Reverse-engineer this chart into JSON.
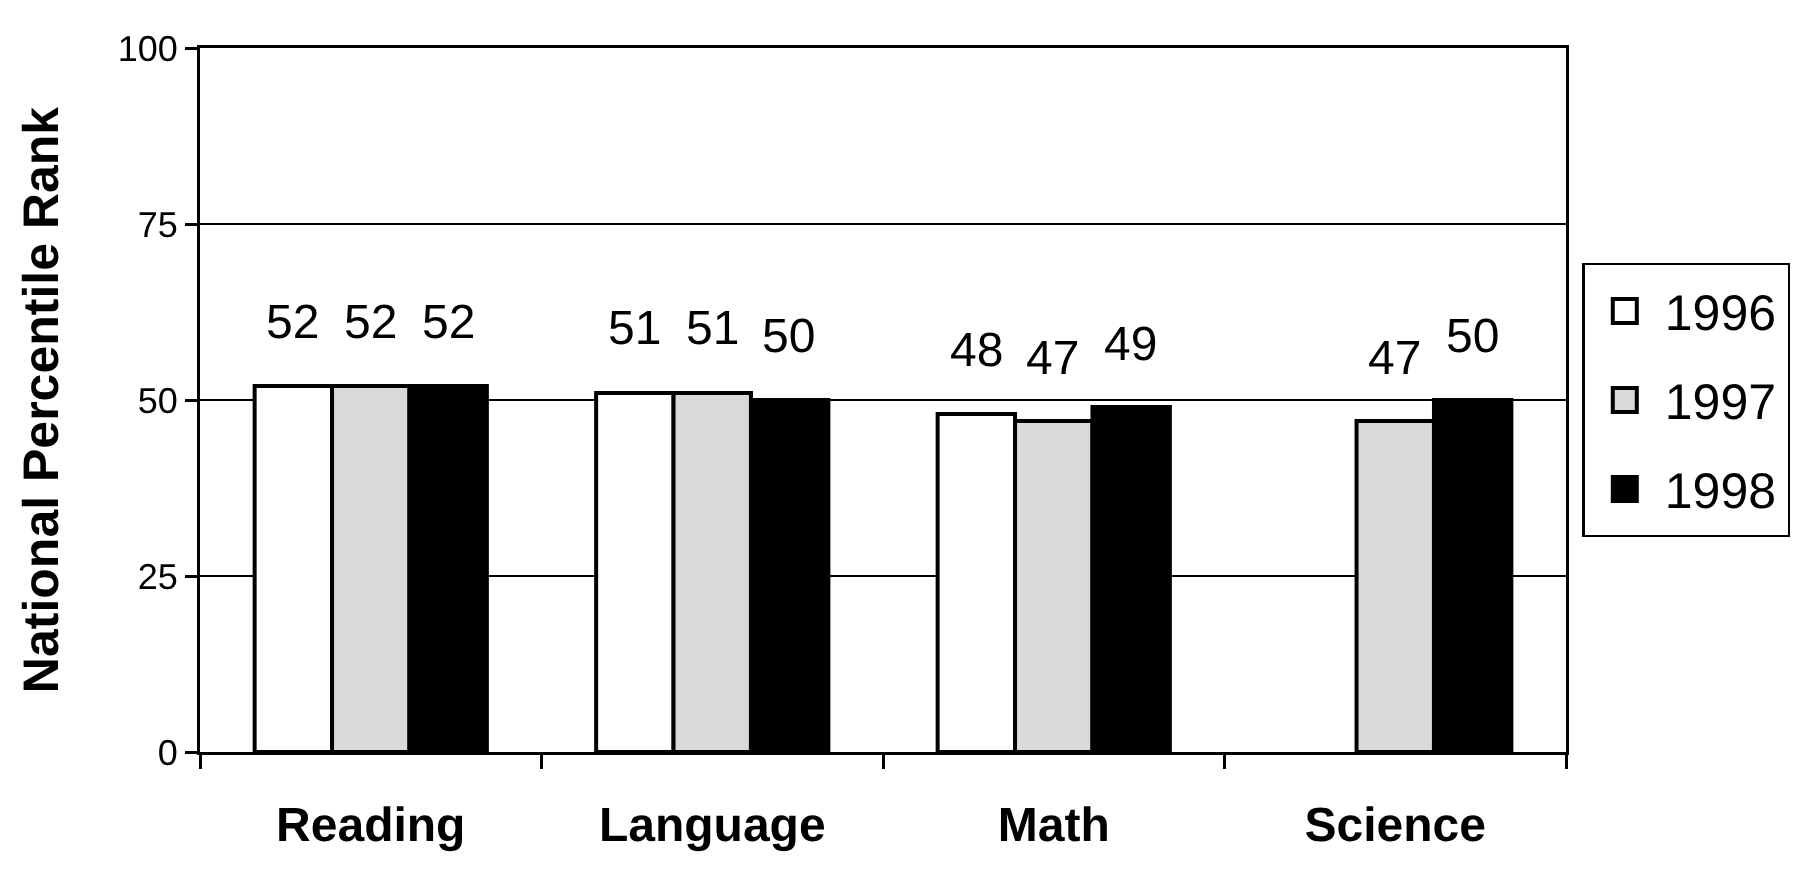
{
  "chart_data": {
    "type": "bar",
    "ylabel": "National Percentile Rank",
    "categories": [
      "Reading",
      "Language",
      "Math",
      "Science"
    ],
    "series": [
      {
        "name": "1996",
        "color": "#ffffff",
        "values": [
          52,
          51,
          48,
          null
        ]
      },
      {
        "name": "1997",
        "color": "#d9d9d9",
        "values": [
          52,
          51,
          47,
          47
        ]
      },
      {
        "name": "1998",
        "color": "#000000",
        "values": [
          52,
          50,
          49,
          50
        ]
      }
    ],
    "ylim": [
      0,
      100
    ],
    "yticks": [
      0,
      25,
      50,
      75,
      100
    ],
    "grid": "y",
    "legend": "right",
    "data_labels": true
  }
}
